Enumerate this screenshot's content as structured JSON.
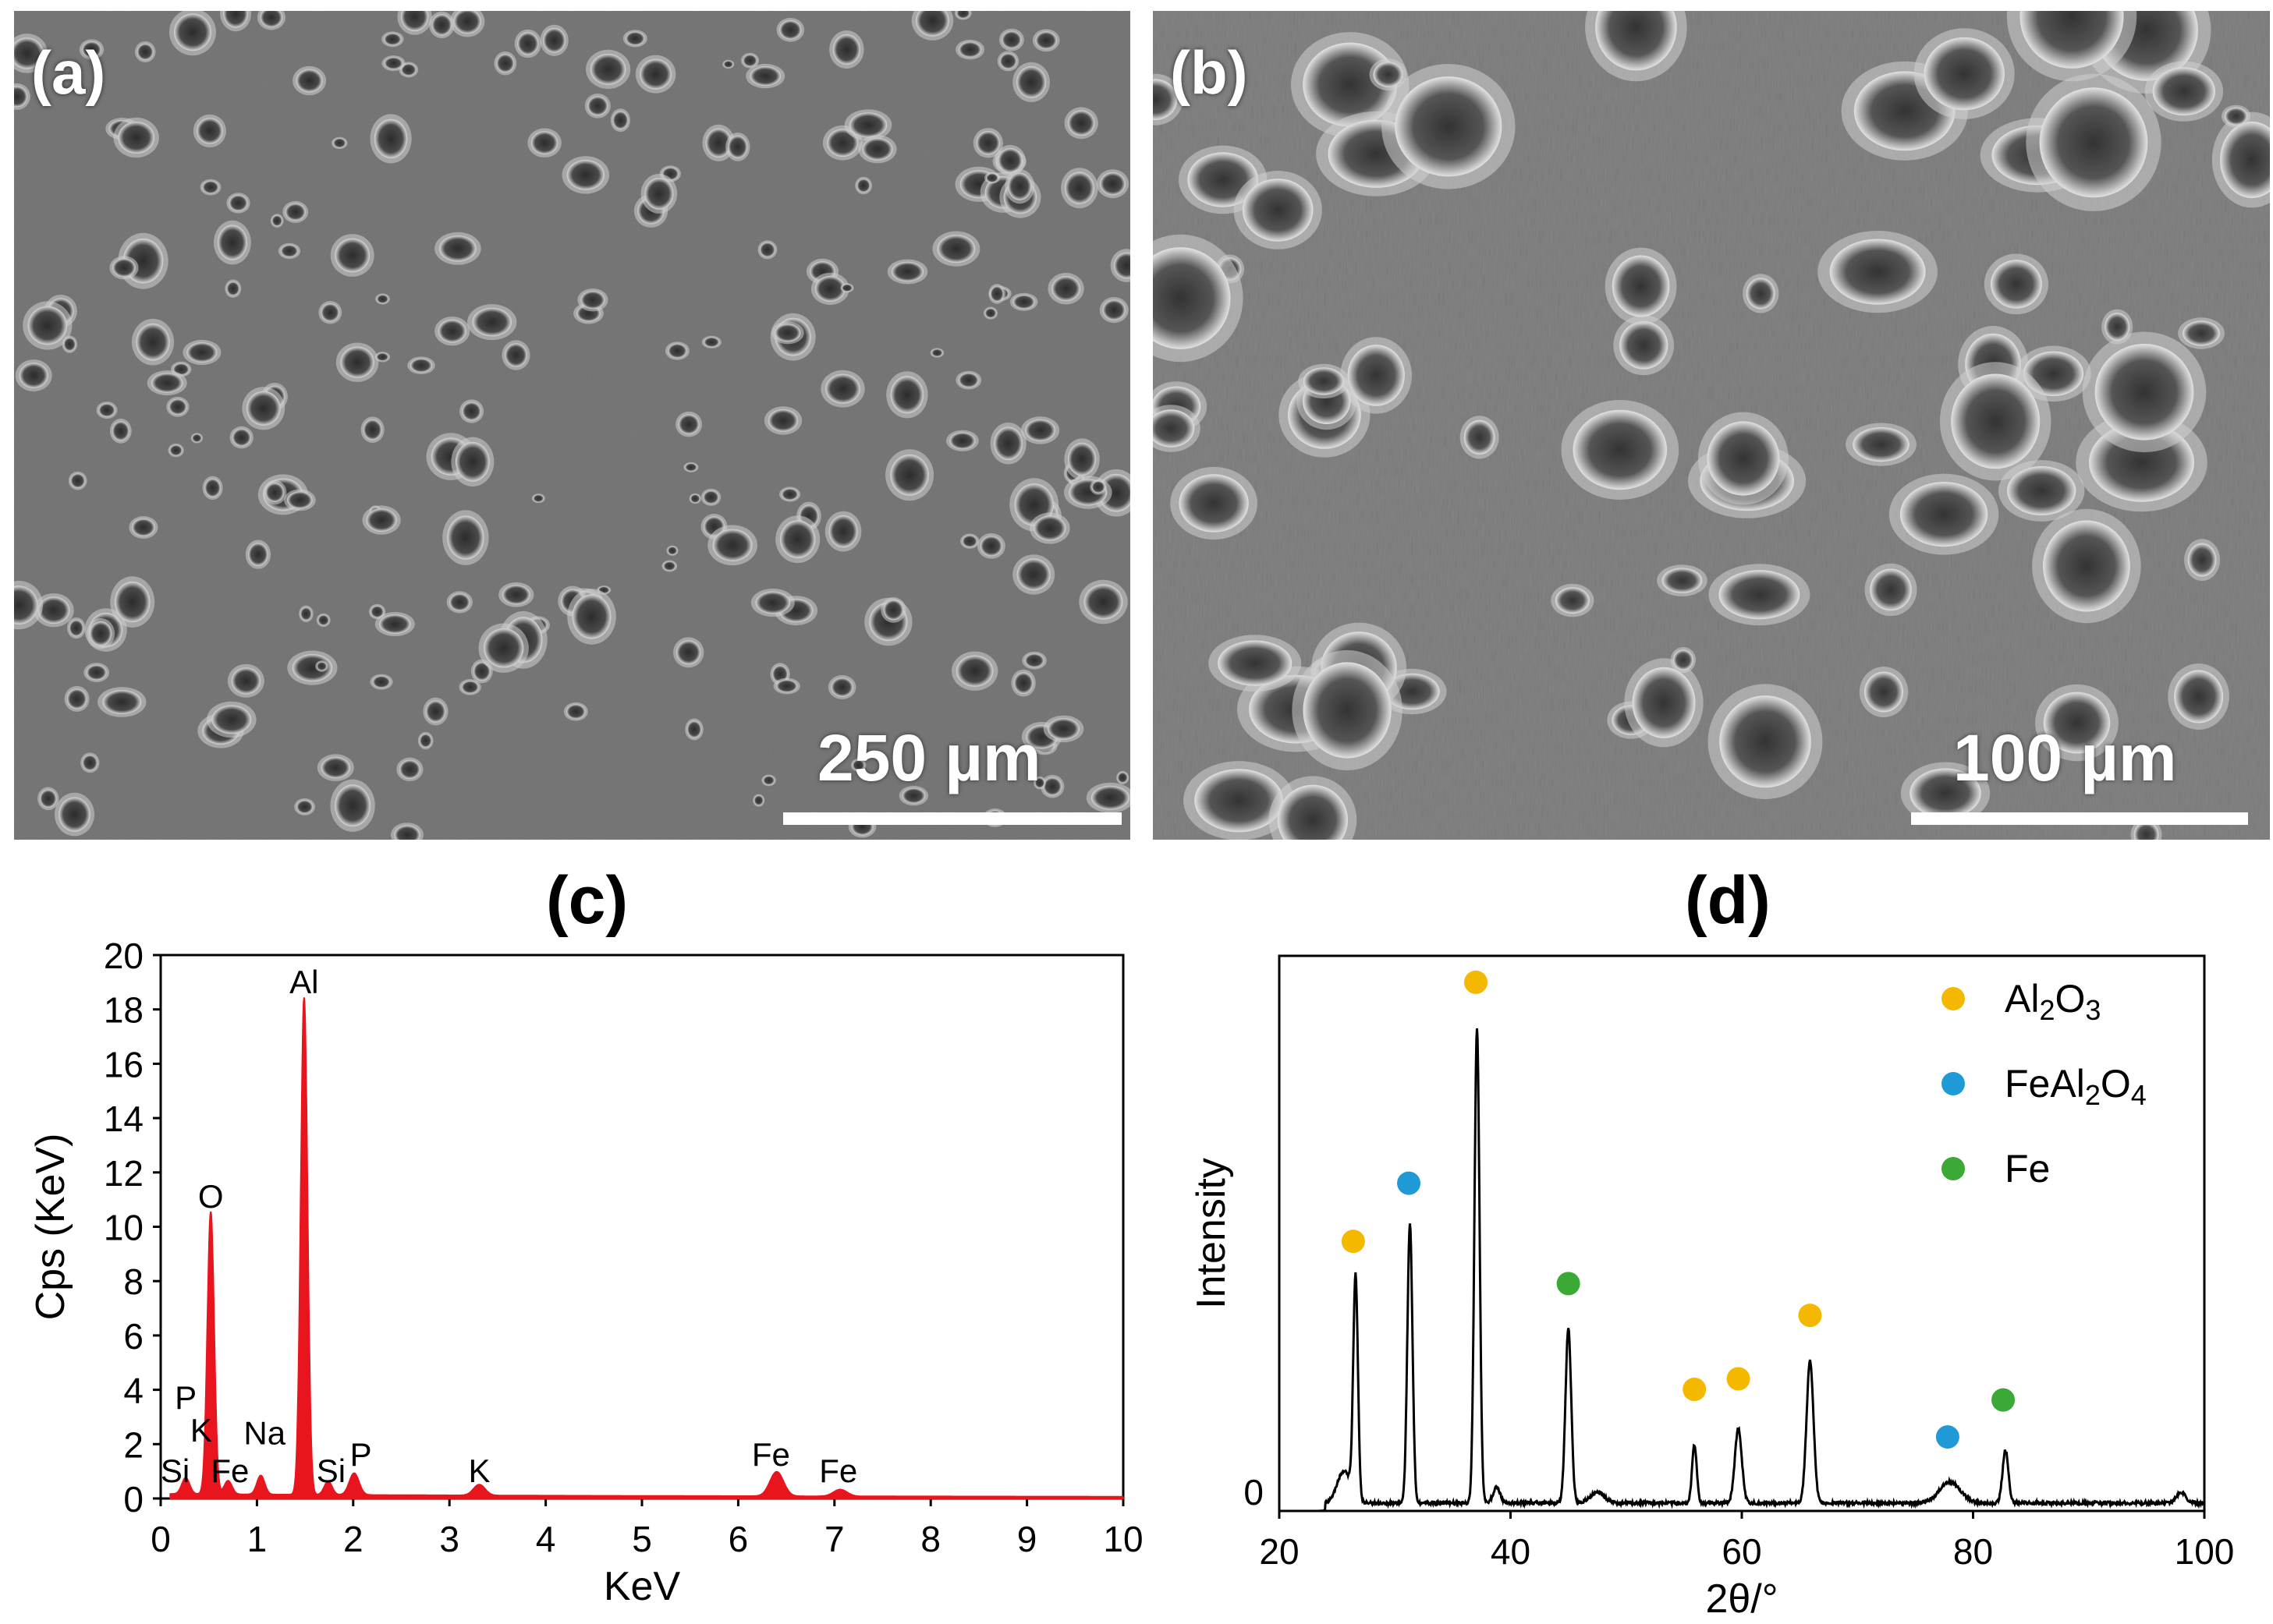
{
  "panels": {
    "a": {
      "label": "(a)",
      "scale": "250 µm"
    },
    "b": {
      "label": "(b)",
      "scale": "100 µm"
    },
    "c": {
      "label": "(c)"
    },
    "d": {
      "label": "(d)"
    }
  },
  "colors": {
    "spectrum": "#e8141e",
    "al2o3": "#f5b800",
    "feal2o4": "#1f9ad6",
    "fe": "#3aa935",
    "axis": "#000000"
  },
  "chart_data": [
    {
      "type": "area",
      "panel": "(c)",
      "xlabel": "KeV",
      "ylabel": "Cps (KeV)",
      "xlim": [
        0,
        10
      ],
      "ylim": [
        0,
        20
      ],
      "xticks": [
        0,
        1,
        2,
        3,
        4,
        5,
        6,
        7,
        8,
        9,
        10
      ],
      "yticks": [
        0,
        2,
        4,
        6,
        8,
        10,
        12,
        14,
        16,
        18,
        20
      ],
      "peaks": [
        {
          "x": 0.26,
          "y": 0.6,
          "w": 0.04
        },
        {
          "x": 0.52,
          "y": 10.4,
          "w": 0.035
        },
        {
          "x": 0.7,
          "y": 0.5,
          "w": 0.04
        },
        {
          "x": 1.04,
          "y": 0.7,
          "w": 0.04
        },
        {
          "x": 1.49,
          "y": 18.3,
          "w": 0.035
        },
        {
          "x": 1.74,
          "y": 0.5,
          "w": 0.04
        },
        {
          "x": 2.01,
          "y": 0.8,
          "w": 0.05
        },
        {
          "x": 3.31,
          "y": 0.4,
          "w": 0.06
        },
        {
          "x": 6.4,
          "y": 0.9,
          "w": 0.07
        },
        {
          "x": 7.06,
          "y": 0.25,
          "w": 0.07
        }
      ],
      "annotations": [
        {
          "text": "Al",
          "x": 1.49,
          "y": 18.6
        },
        {
          "text": "O",
          "x": 0.52,
          "y": 10.7
        },
        {
          "text": "P",
          "x": 0.26,
          "y": 3.3
        },
        {
          "text": "K",
          "x": 0.42,
          "y": 2.1
        },
        {
          "text": "Na",
          "x": 1.08,
          "y": 2.0
        },
        {
          "text": "Si",
          "x": 0.15,
          "y": 0.6
        },
        {
          "text": "Fe",
          "x": 0.72,
          "y": 0.6
        },
        {
          "text": "Si",
          "x": 1.77,
          "y": 0.6
        },
        {
          "text": "P",
          "x": 2.08,
          "y": 1.2
        },
        {
          "text": "K",
          "x": 3.31,
          "y": 0.6
        },
        {
          "text": "Fe",
          "x": 6.34,
          "y": 1.2
        },
        {
          "text": "Fe",
          "x": 7.04,
          "y": 0.6
        }
      ]
    },
    {
      "type": "line",
      "panel": "(d)",
      "xlabel": "2θ/°",
      "ylabel": "Intensity",
      "xlim": [
        20,
        100
      ],
      "xticks": [
        20,
        40,
        60,
        80,
        100
      ],
      "yticks_labeled": [
        0
      ],
      "peaks": [
        {
          "x": 25.6,
          "y": 0.06,
          "w": 0.6
        },
        {
          "x": 26.6,
          "y": 0.42,
          "w": 0.2
        },
        {
          "x": 31.3,
          "y": 0.53,
          "w": 0.22
        },
        {
          "x": 37.1,
          "y": 0.9,
          "w": 0.22
        },
        {
          "x": 38.8,
          "y": 0.03,
          "w": 0.3
        },
        {
          "x": 45.0,
          "y": 0.33,
          "w": 0.25
        },
        {
          "x": 47.5,
          "y": 0.02,
          "w": 0.6
        },
        {
          "x": 55.9,
          "y": 0.11,
          "w": 0.2
        },
        {
          "x": 59.7,
          "y": 0.14,
          "w": 0.3
        },
        {
          "x": 65.9,
          "y": 0.27,
          "w": 0.3
        },
        {
          "x": 78.0,
          "y": 0.04,
          "w": 0.9
        },
        {
          "x": 82.8,
          "y": 0.1,
          "w": 0.25
        },
        {
          "x": 98.0,
          "y": 0.02,
          "w": 0.4
        }
      ],
      "markers": [
        {
          "phase": "Al2O3",
          "x": 26.4,
          "y": 0.51
        },
        {
          "phase": "FeAl2O4",
          "x": 31.2,
          "y": 0.62
        },
        {
          "phase": "Al2O3",
          "x": 37.0,
          "y": 1.0
        },
        {
          "phase": "Fe",
          "x": 45.0,
          "y": 0.43
        },
        {
          "phase": "Al2O3",
          "x": 55.9,
          "y": 0.23
        },
        {
          "phase": "Al2O3",
          "x": 59.7,
          "y": 0.25
        },
        {
          "phase": "Al2O3",
          "x": 65.9,
          "y": 0.37
        },
        {
          "phase": "FeAl2O4",
          "x": 77.8,
          "y": 0.14
        },
        {
          "phase": "Fe",
          "x": 82.6,
          "y": 0.21
        }
      ],
      "legend": [
        {
          "phase": "Al2O3",
          "label_main": "Al",
          "sub1": "2",
          "mid": "O",
          "sub2": "3"
        },
        {
          "phase": "FeAl2O4",
          "label_main": "FeAl",
          "sub1": "2",
          "mid": "O",
          "sub2": "4"
        },
        {
          "phase": "Fe",
          "label_main": "Fe",
          "sub1": "",
          "mid": "",
          "sub2": ""
        }
      ],
      "legend_position": "top-right"
    }
  ]
}
